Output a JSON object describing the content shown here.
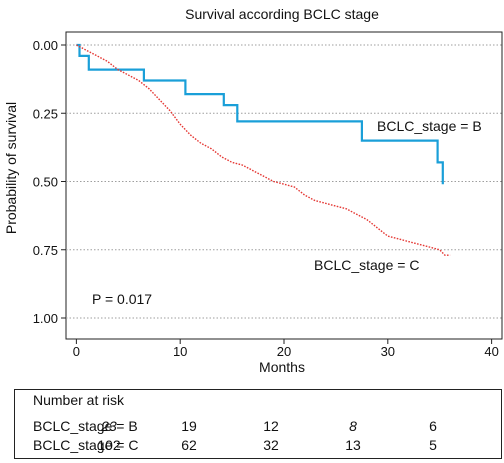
{
  "chart_data": {
    "type": "line",
    "title": "Survival according BCLC stage",
    "xlabel": "Months",
    "ylabel": "Probability of survival",
    "xlim": [
      -1,
      41
    ],
    "ylim": [
      0.0,
      1.05
    ],
    "y_inverted": true,
    "xticks": [
      "0",
      "10",
      "20",
      "30",
      "40"
    ],
    "xtick_values": [
      0,
      10,
      20,
      30,
      40
    ],
    "yticks": [
      "0.00",
      "0.25",
      "0.50",
      "0.75",
      "1.00"
    ],
    "ytick_values": [
      0.0,
      0.25,
      0.5,
      0.75,
      1.0
    ],
    "grid": "horizontal dotted",
    "annotation": "P = 0.017",
    "series": [
      {
        "name": "BCLC_stage = B",
        "label": "BCLC_stage = B",
        "color": "#1a9fd8",
        "style": "solid",
        "points": [
          [
            0,
            0.0
          ],
          [
            0.3,
            0.0
          ],
          [
            0.3,
            0.04
          ],
          [
            1.2,
            0.04
          ],
          [
            1.2,
            0.09
          ],
          [
            6.5,
            0.09
          ],
          [
            6.5,
            0.13
          ],
          [
            10.5,
            0.13
          ],
          [
            10.5,
            0.18
          ],
          [
            14.2,
            0.18
          ],
          [
            14.2,
            0.22
          ],
          [
            15.5,
            0.22
          ],
          [
            15.5,
            0.28
          ],
          [
            27.5,
            0.28
          ],
          [
            27.5,
            0.35
          ],
          [
            34.8,
            0.35
          ],
          [
            34.8,
            0.43
          ],
          [
            35.3,
            0.43
          ],
          [
            35.3,
            0.51
          ]
        ]
      },
      {
        "name": "BCLC_stage = C",
        "label": "BCLC_stage = C",
        "color": "#e53935",
        "style": "dotted",
        "points": [
          [
            0,
            0.0
          ],
          [
            0.5,
            0.01
          ],
          [
            1,
            0.02
          ],
          [
            2,
            0.04
          ],
          [
            3,
            0.06
          ],
          [
            4,
            0.09
          ],
          [
            5,
            0.11
          ],
          [
            6,
            0.13
          ],
          [
            7,
            0.16
          ],
          [
            8,
            0.2
          ],
          [
            9,
            0.24
          ],
          [
            10,
            0.29
          ],
          [
            11,
            0.33
          ],
          [
            12,
            0.36
          ],
          [
            13,
            0.38
          ],
          [
            14,
            0.41
          ],
          [
            15,
            0.43
          ],
          [
            16,
            0.44
          ],
          [
            17,
            0.46
          ],
          [
            18,
            0.48
          ],
          [
            19,
            0.5
          ],
          [
            20,
            0.51
          ],
          [
            21,
            0.52
          ],
          [
            22,
            0.55
          ],
          [
            23,
            0.57
          ],
          [
            24,
            0.58
          ],
          [
            25,
            0.59
          ],
          [
            26,
            0.6
          ],
          [
            27,
            0.62
          ],
          [
            28,
            0.64
          ],
          [
            29,
            0.67
          ],
          [
            30,
            0.7
          ],
          [
            31,
            0.71
          ],
          [
            32,
            0.72
          ],
          [
            33,
            0.73
          ],
          [
            34,
            0.74
          ],
          [
            35,
            0.75
          ],
          [
            35.5,
            0.77
          ],
          [
            36,
            0.77
          ]
        ]
      }
    ]
  },
  "risk_table": {
    "title": "Number at risk",
    "rows": [
      {
        "label": "BCLC_stage = B",
        "values": [
          "23",
          "19",
          "12",
          "8",
          "6"
        ],
        "italic": [
          true,
          false,
          false,
          true,
          false
        ]
      },
      {
        "label": "BCLC_stage = C",
        "values": [
          "102",
          "62",
          "32",
          "13",
          "5"
        ],
        "italic": [
          false,
          false,
          false,
          false,
          false
        ]
      }
    ]
  }
}
